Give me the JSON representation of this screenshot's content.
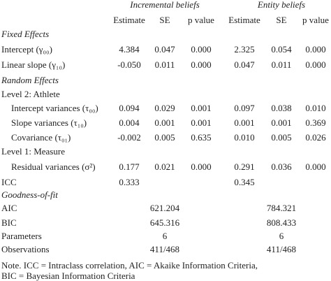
{
  "header": {
    "groups": [
      "Incremental beliefs",
      "Entity beliefs"
    ],
    "columns": [
      "Estimate",
      "SE",
      "p value",
      "Estimate",
      "SE",
      "p value"
    ]
  },
  "rows": [
    {
      "label": "Fixed Effects"
    },
    {
      "label": "Intercept (γ₀₀)",
      "cells": [
        "4.384",
        "0.047",
        "0.000",
        "2.325",
        "0.054",
        "0.000"
      ]
    },
    {
      "label": "Linear slope (γ₁₀)",
      "cells": [
        "-0.050",
        "0.011",
        "0.000",
        "0.047",
        "0.011",
        "0.000"
      ]
    },
    {
      "label": "Random Effects"
    },
    {
      "label": "Level 2: Athlete"
    },
    {
      "label": "Intercept variances (τ₀₀)",
      "cells": [
        "0.094",
        "0.029",
        "0.001",
        "0.097",
        "0.038",
        "0.010"
      ]
    },
    {
      "label": "Slope variances (τ₁₀)",
      "cells": [
        "0.004",
        "0.001",
        "0.001",
        "0.001",
        "0.001",
        "0.369"
      ]
    },
    {
      "label": "Covariance (τ₀₁)",
      "cells": [
        "-0.002",
        "0.005",
        "0.635",
        "0.010",
        "0.005",
        "0.026"
      ]
    },
    {
      "label": "Level 1: Measure"
    },
    {
      "label": "Residual variances (σ²)",
      "cells": [
        "0.177",
        "0.021",
        "0.000",
        "0.291",
        "0.036",
        "0.000"
      ]
    },
    {
      "label": "ICC",
      "cells": [
        "0.333",
        null,
        null,
        "0.345",
        null,
        null
      ]
    },
    {
      "label": "Goodness-of-fit"
    },
    {
      "label": "AIC",
      "cells": [
        null,
        "621.204",
        null,
        null,
        "784.321",
        null
      ]
    },
    {
      "label": "BIC",
      "cells": [
        null,
        "645.316",
        null,
        null,
        "808.433",
        null
      ]
    },
    {
      "label": "Parameters",
      "cells": [
        null,
        "6",
        null,
        null,
        "6",
        null
      ]
    },
    {
      "label": "Observations",
      "cells": [
        null,
        "411/468",
        null,
        null,
        "411/468",
        null
      ]
    }
  ],
  "notes": [
    "Note. ICC = Intraclass correlation,  AIC = Akaike Information Criteria,",
    "BIC = Bayesian Information Criteria"
  ]
}
